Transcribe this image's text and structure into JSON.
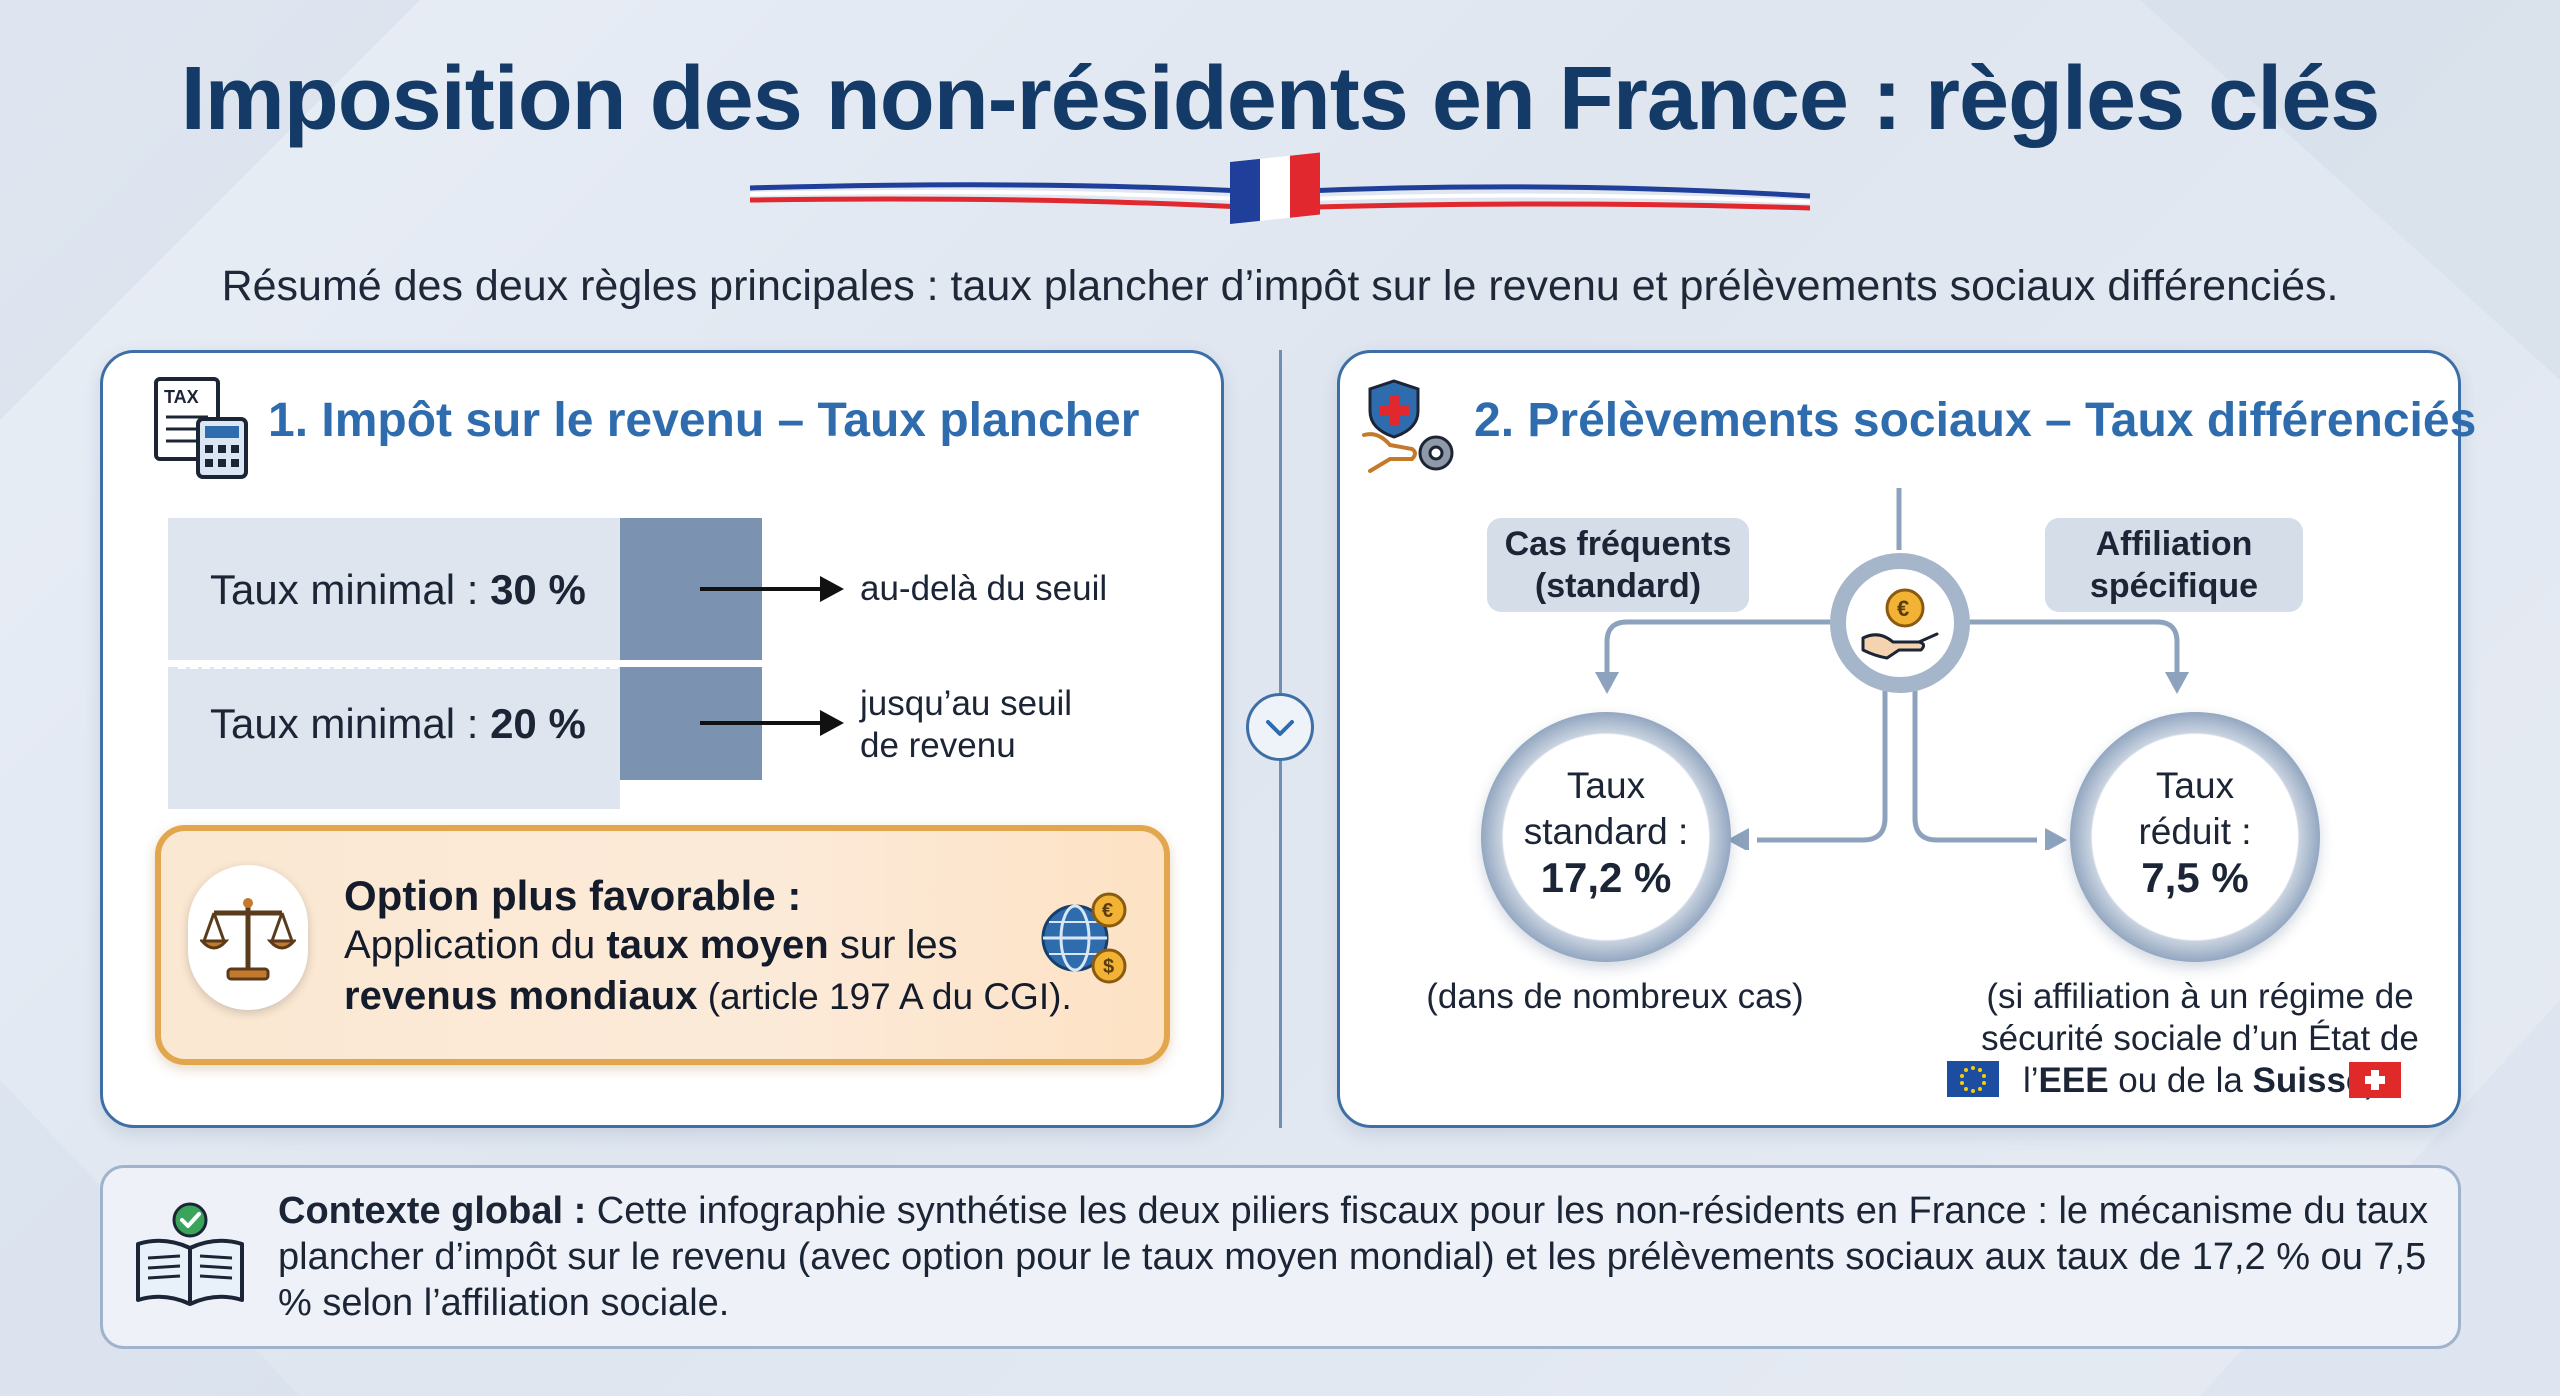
{
  "header": {
    "title": "Imposition des non-résidents en France : règles clés",
    "subtitle": "Résumé des deux règles principales : taux plancher d’impôt sur le revenu et prélèvements sociaux différenciés."
  },
  "section1": {
    "icon": "tax-calculator-icon",
    "icon_text": "TAX",
    "title": "1. Impôt sur le revenu – Taux plancher",
    "rows": [
      {
        "prefix": "Taux minimal : ",
        "rate": "30 %",
        "note_line1": "au-delà du seuil",
        "note_line2": ""
      },
      {
        "prefix": "Taux minimal : ",
        "rate": "20 %",
        "note_line1": "jusqu’au seuil",
        "note_line2": "de revenu"
      }
    ],
    "option": {
      "icon": "scales-icon",
      "side_icon": "globe-currency-icon",
      "title": "Option plus favorable :",
      "text_1": "Application du ",
      "bold_1": "taux moyen",
      "text_2": " sur les ",
      "bold_2": "revenus mondiaux",
      "text_3": " (article 197 A du CGI)."
    }
  },
  "section2": {
    "icon": "health-shield-gear-icon",
    "title": "2. Prélèvements sociaux – Taux différenciés",
    "center_icon": "hand-euro-icon",
    "left_pill": {
      "line1": "Cas fréquents",
      "line2": "(standard)"
    },
    "right_pill": {
      "line1": "Affiliation",
      "line2": "spécifique"
    },
    "left_circle": {
      "line1": "Taux",
      "line2": "standard :",
      "value": "17,2 %"
    },
    "right_circle": {
      "line1": "Taux",
      "line2": "réduit :",
      "value": "7,5 %"
    },
    "left_note": "(dans de nombreux cas)",
    "right_note": {
      "line1": "(si affiliation à un régime de",
      "line2": "sécurité sociale d’un État de",
      "line3_pre": "l’",
      "line3_b1": "EEE",
      "line3_mid": " ou de la ",
      "line3_b2": "Suisse",
      "line3_post": ")"
    },
    "flags": [
      "eu-flag-icon",
      "swiss-flag-icon"
    ]
  },
  "context": {
    "icon": "book-check-icon",
    "label": "Contexte global :",
    "text": " Cette infographie synthétise les deux piliers fiscaux pour les non-résidents en France : le mécanisme du taux plancher d’impôt sur le revenu (avec option pour le taux moyen mondial) et les prélèvements sociaux aux taux de 17,2 % ou 7,5 % selon l’affiliation sociale."
  },
  "colors": {
    "title": "#143a68",
    "section_title": "#2f6cae",
    "card_border": "#3d6fa6",
    "rate_block": "#7b93b0",
    "option_border": "#e2a64e",
    "flag_blue": "#1f3f9a",
    "flag_red": "#e0282e"
  }
}
